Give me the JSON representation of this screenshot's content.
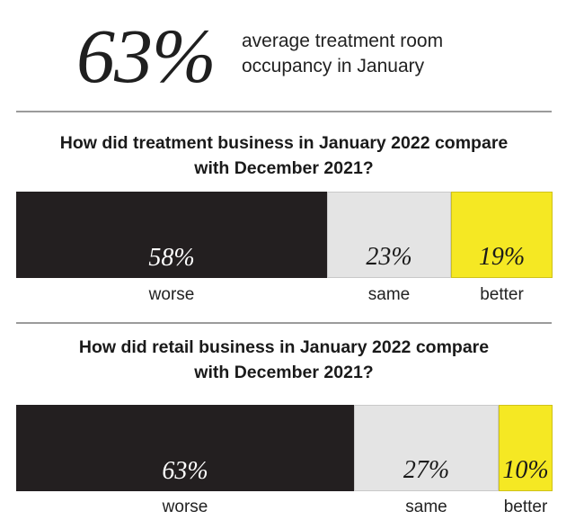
{
  "headline": {
    "value": "63%",
    "label_line1": "average treatment room",
    "label_line2": "occupancy in January"
  },
  "chart_data": [
    {
      "type": "bar",
      "title_line1": "How did treatment business in January 2022 compare",
      "title_line2": "with December 2021?",
      "categories": [
        "worse",
        "same",
        "better"
      ],
      "values": [
        58,
        23,
        19
      ],
      "value_labels": [
        "58%",
        "23%",
        "19%"
      ],
      "colors": [
        "#231f20",
        "#e4e4e4",
        "#f5e823"
      ]
    },
    {
      "type": "bar",
      "title_line1": "How did retail business in January 2022 compare",
      "title_line2": "with December 2021?",
      "categories": [
        "worse",
        "same",
        "better"
      ],
      "values": [
        63,
        27,
        10
      ],
      "value_labels": [
        "63%",
        "27%",
        "10%"
      ],
      "colors": [
        "#231f20",
        "#e4e4e4",
        "#f5e823"
      ]
    }
  ]
}
